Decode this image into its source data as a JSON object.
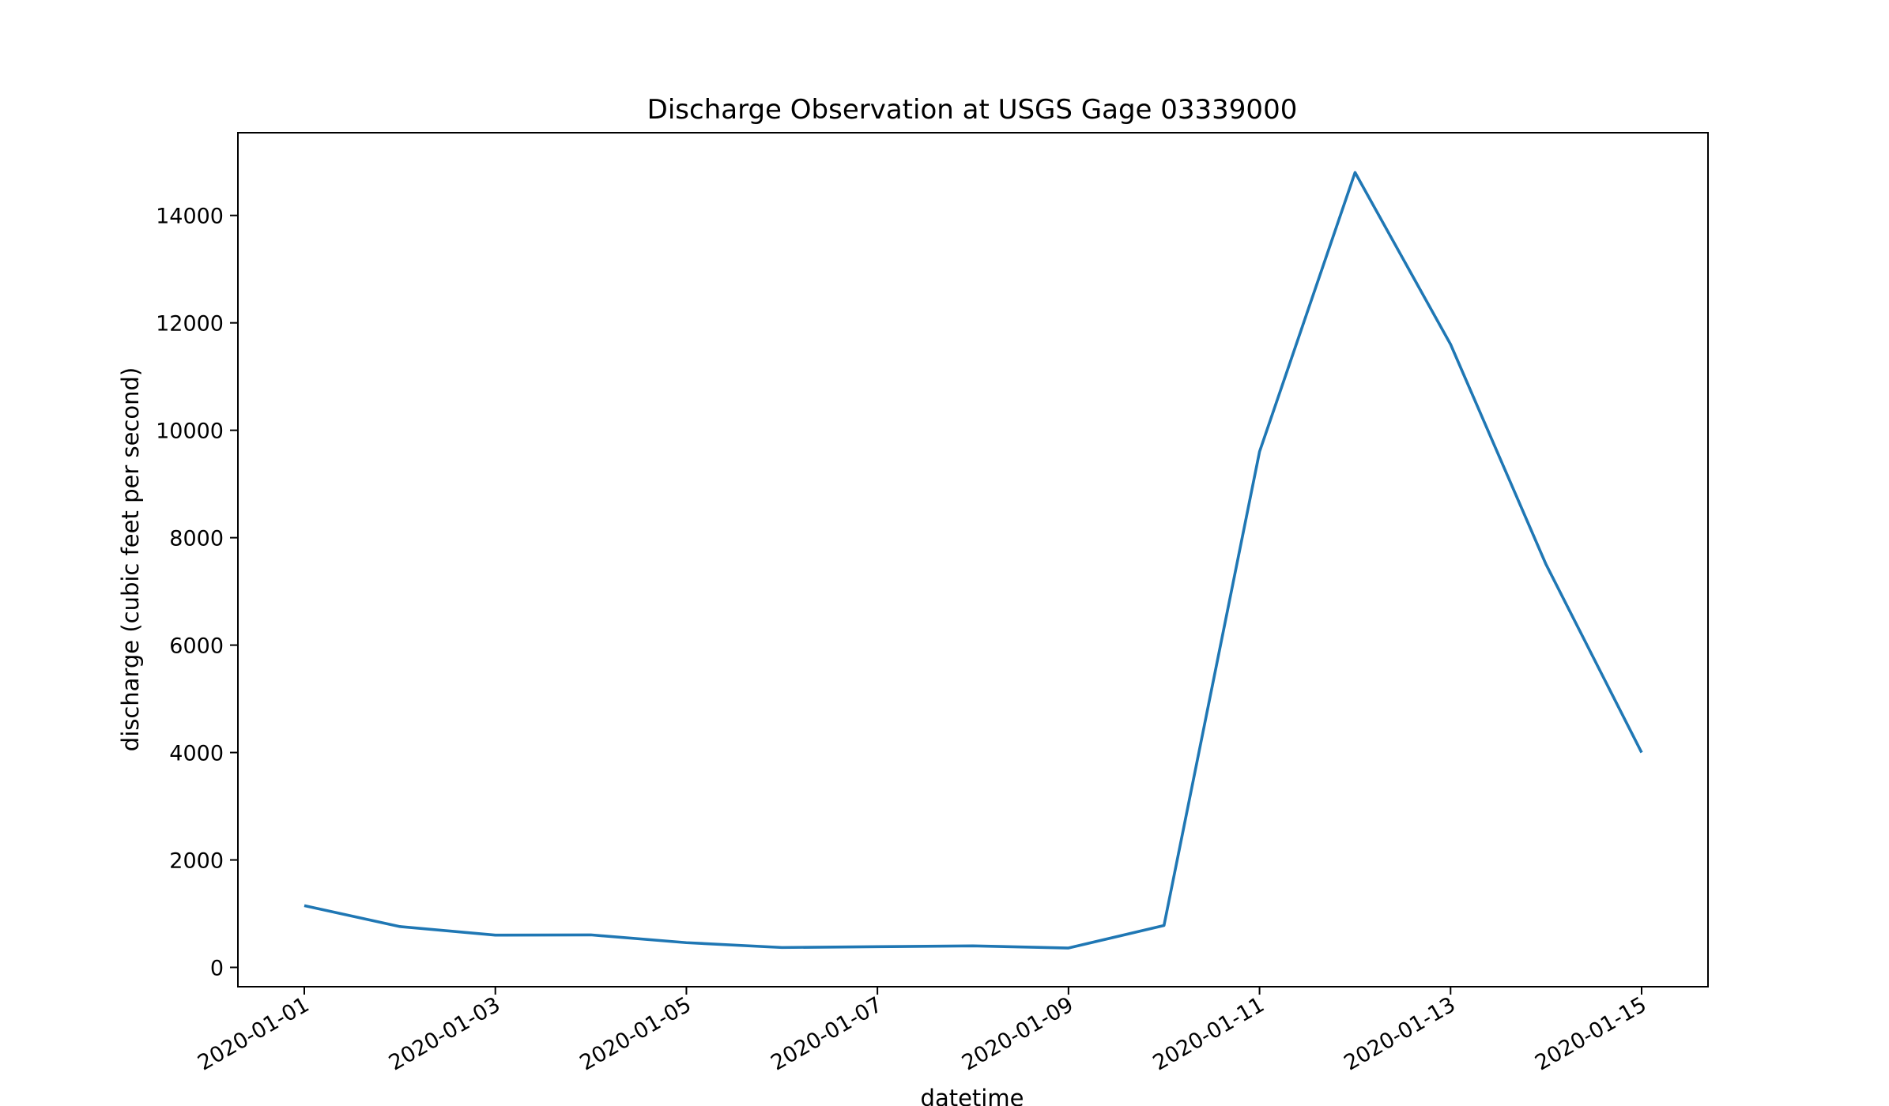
{
  "chart_data": {
    "type": "line",
    "title": "Discharge Observation at USGS Gage 03339000",
    "xlabel": "datetime",
    "ylabel": "discharge (cubic feet per second)",
    "x": [
      "2020-01-01",
      "2020-01-02",
      "2020-01-03",
      "2020-01-04",
      "2020-01-05",
      "2020-01-06",
      "2020-01-07",
      "2020-01-08",
      "2020-01-09",
      "2020-01-10",
      "2020-01-11",
      "2020-01-12",
      "2020-01-13",
      "2020-01-14",
      "2020-01-15"
    ],
    "series": [
      {
        "values": [
          1150,
          760,
          600,
          605,
          460,
          370,
          385,
          400,
          360,
          780,
          9600,
          14800,
          11600,
          7500,
          4000
        ],
        "color": "#1f77b4"
      }
    ],
    "xticks": [
      "2020-01-01",
      "2020-01-03",
      "2020-01-05",
      "2020-01-07",
      "2020-01-09",
      "2020-01-11",
      "2020-01-13",
      "2020-01-15"
    ],
    "yticks": [
      0,
      2000,
      4000,
      6000,
      8000,
      10000,
      12000,
      14000
    ],
    "xlim": [
      "2020-01-01",
      "2020-01-15"
    ],
    "ylim": [
      -360,
      15540
    ],
    "grid": false,
    "legend": "none"
  }
}
